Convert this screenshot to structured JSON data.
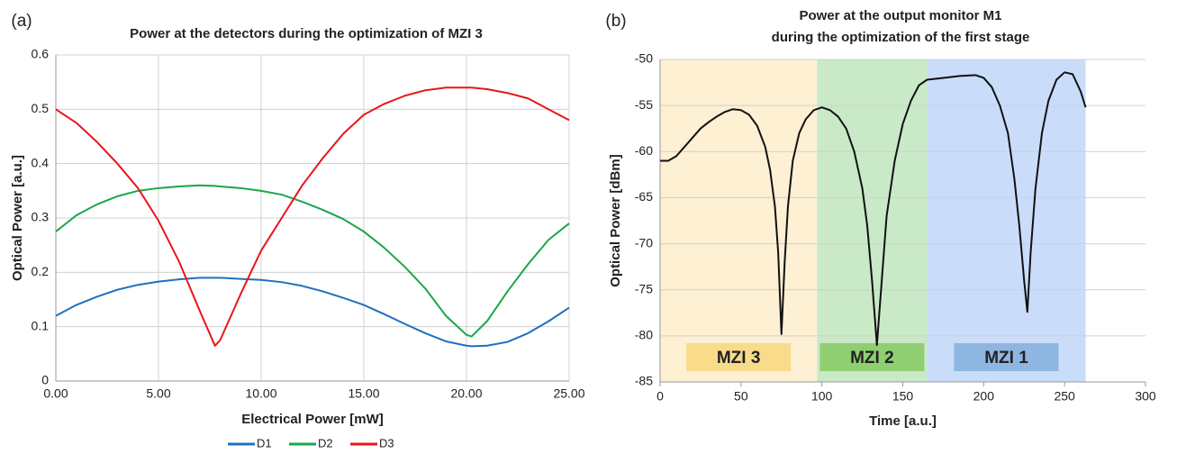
{
  "chart_data": [
    {
      "type": "line",
      "panel_label": "(a)",
      "title": [
        "Power at the detectors during the optimization of MZI 3"
      ],
      "x_label": "Electrical Power [mW]",
      "y_label": "Optical Power [a.u.]",
      "x": [
        0,
        1,
        2,
        3,
        4,
        5,
        6,
        7,
        7.75,
        8,
        9,
        10,
        11,
        12,
        13,
        14,
        15,
        16,
        17,
        18,
        19,
        20,
        20.25,
        21,
        22,
        23,
        24,
        25
      ],
      "series": [
        {
          "name": "D1",
          "color": "#1f6fbf",
          "values": [
            0.12,
            0.14,
            0.155,
            0.168,
            0.177,
            0.183,
            0.187,
            0.19,
            0.19,
            0.19,
            0.188,
            0.186,
            0.182,
            0.175,
            0.165,
            0.153,
            0.14,
            0.123,
            0.105,
            0.088,
            0.073,
            0.065,
            0.064,
            0.065,
            0.072,
            0.088,
            0.11,
            0.135
          ]
        },
        {
          "name": "D2",
          "color": "#1aa64a",
          "values": [
            0.275,
            0.305,
            0.325,
            0.34,
            0.35,
            0.355,
            0.358,
            0.36,
            0.359,
            0.358,
            0.355,
            0.35,
            0.343,
            0.33,
            0.315,
            0.298,
            0.275,
            0.245,
            0.21,
            0.17,
            0.12,
            0.085,
            0.082,
            0.11,
            0.165,
            0.215,
            0.26,
            0.29
          ]
        },
        {
          "name": "D3",
          "color": "#e8161b",
          "values": [
            0.5,
            0.475,
            0.44,
            0.4,
            0.355,
            0.295,
            0.22,
            0.13,
            0.065,
            0.075,
            0.16,
            0.24,
            0.3,
            0.36,
            0.41,
            0.455,
            0.49,
            0.51,
            0.525,
            0.535,
            0.54,
            0.54,
            0.54,
            0.537,
            0.53,
            0.52,
            0.5,
            0.48
          ]
        }
      ],
      "xlim": [
        0,
        25
      ],
      "ylim": [
        0,
        0.6
      ],
      "xticks": [
        {
          "value": 0,
          "label": "0.00"
        },
        {
          "value": 5,
          "label": "5.00"
        },
        {
          "value": 10,
          "label": "10.00"
        },
        {
          "value": 15,
          "label": "15.00"
        },
        {
          "value": 20,
          "label": "20.00"
        },
        {
          "value": 25,
          "label": "25.00"
        }
      ],
      "yticks": [
        0,
        0.1,
        0.2,
        0.3,
        0.4,
        0.5,
        0.6
      ],
      "grid": "both",
      "legend": "bottom"
    },
    {
      "type": "line",
      "panel_label": "(b)",
      "title": [
        "Power at the output monitor M1",
        "during the optimization of the first stage"
      ],
      "x_label": "Time [a.u.]",
      "y_label": "Optical Power [dBm]",
      "x": [
        0,
        5,
        10,
        15,
        20,
        25,
        30,
        35,
        40,
        45,
        50,
        55,
        60,
        65,
        68,
        71,
        73,
        75,
        77,
        79,
        82,
        86,
        90,
        95,
        100,
        105,
        110,
        115,
        120,
        125,
        128,
        131,
        134,
        137,
        140,
        145,
        150,
        155,
        160,
        165,
        175,
        185,
        195,
        200,
        205,
        210,
        215,
        219,
        222,
        225,
        227,
        229,
        232,
        236,
        240,
        245,
        250,
        255,
        260,
        263
      ],
      "series": [
        {
          "color": "#111111",
          "values": [
            -61,
            -61,
            -60.5,
            -59.5,
            -58.5,
            -57.5,
            -56.8,
            -56.2,
            -55.7,
            -55.4,
            -55.5,
            -56,
            -57.2,
            -59.5,
            -62,
            -66,
            -71,
            -79.8,
            -72,
            -66,
            -61,
            -58,
            -56.5,
            -55.5,
            -55.2,
            -55.5,
            -56.2,
            -57.5,
            -60,
            -64,
            -68,
            -74,
            -81,
            -74,
            -67,
            -61,
            -57,
            -54.5,
            -52.8,
            -52.2,
            -52,
            -51.8,
            -51.7,
            -52,
            -53,
            -55,
            -58,
            -63,
            -68,
            -74,
            -77.4,
            -71,
            -64,
            -58,
            -54.5,
            -52.2,
            -51.4,
            -51.6,
            -53.5,
            -55.2
          ]
        }
      ],
      "regions": [
        {
          "label": "MZI 3",
          "start": 0,
          "end": 97,
          "color": "#fdf0d3",
          "label_color": "#f9dc8a"
        },
        {
          "label": "MZI 2",
          "start": 97,
          "end": 165,
          "color": "#c9e9c7",
          "label_color": "#8fcf72"
        },
        {
          "label": "MZI 1",
          "start": 165,
          "end": 263,
          "color": "#c9ddfa",
          "label_color": "#8fb6e0"
        }
      ],
      "xlim": [
        0,
        300
      ],
      "ylim": [
        -85,
        -50
      ],
      "xticks": [
        0,
        50,
        100,
        150,
        200,
        250,
        300
      ],
      "yticks": [
        -85,
        -80,
        -75,
        -70,
        -65,
        -60,
        -55,
        -50
      ],
      "grid": "y"
    }
  ]
}
